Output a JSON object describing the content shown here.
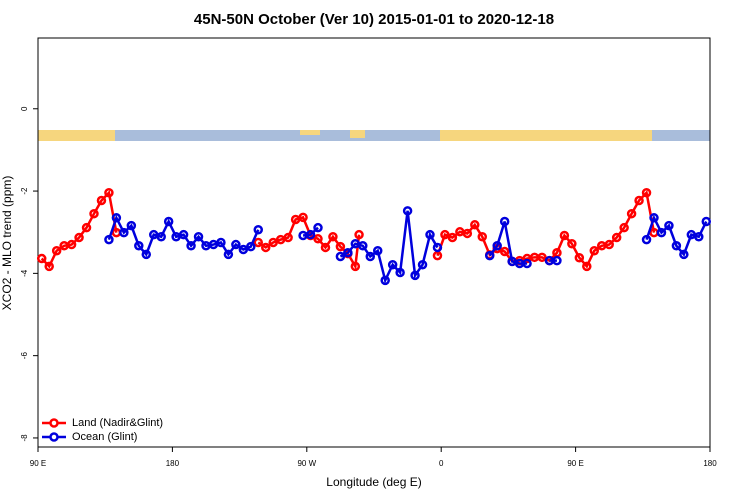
{
  "chart_data": {
    "type": "line",
    "title": "45N-50N October (Ver 10)   2015-01-01 to 2020-12-18",
    "x_label": "Longitude (deg E)",
    "y_label": "XCO2 - MLO trend (ppm)",
    "xlim": [
      90,
      540
    ],
    "ylim": [
      -8.22,
      1.72
    ],
    "xticks": [
      {
        "value": 90,
        "label": "90 E"
      },
      180,
      {
        "value": 270,
        "label": "90 W"
      },
      {
        "value": 360,
        "label": "0"
      },
      {
        "value": 450,
        "label": "90 E"
      },
      {
        "value": 540,
        "label": "180"
      }
    ],
    "yticks": [
      -8,
      -6,
      -4,
      -2,
      0
    ],
    "legend": "bottom-left",
    "series": [
      {
        "name": "Land (Nadir&Glint)",
        "color": "#ff0000",
        "x": [
          92.5,
          97.5,
          102.5,
          107.5,
          112.5,
          117.5,
          122.5,
          127.5,
          132.5,
          137.5,
          142.5,
          200,
          237.5,
          242.5,
          247.5,
          252.5,
          257.5,
          262.5,
          267.5,
          272.5,
          277.5,
          282.5,
          287.5,
          292.5,
          297.5,
          302.5,
          305,
          330,
          357.5,
          362.5,
          367.5,
          372.5,
          377.5,
          382.5,
          387.5,
          392.5,
          397.5,
          402.5,
          407.5,
          412.5,
          417.5,
          422.5,
          427.5,
          432.5,
          437.5,
          442.5,
          447.5,
          452.5,
          457.5,
          462.5,
          467.5,
          472.5,
          477.5,
          482.5,
          487.5,
          492.5,
          497.5,
          502.5
        ],
        "values": [
          -3.64,
          -3.83,
          -3.45,
          -3.33,
          -3.3,
          -3.13,
          -2.89,
          -2.55,
          -2.23,
          -2.04,
          -3.01,
          null,
          -3.25,
          -3.37,
          -3.25,
          -3.18,
          -3.13,
          -2.69,
          -2.64,
          -3.08,
          -3.16,
          -3.37,
          -3.11,
          -3.35,
          -3.52,
          -3.83,
          -3.06,
          null,
          -3.57,
          -3.06,
          -3.13,
          -2.99,
          -3.03,
          -2.82,
          -3.11,
          -3.55,
          -3.4,
          -3.47,
          -3.71,
          -3.69,
          -3.64,
          -3.61,
          -3.61,
          -3.69,
          -3.5,
          -3.08,
          -3.28,
          -3.62,
          -3.83,
          -3.45,
          -3.33,
          -3.3,
          -3.13,
          -2.89,
          -2.55,
          -2.23,
          -2.04,
          -3.01
        ]
      },
      {
        "name": "Ocean (Glint)",
        "color": "#0000dd",
        "x": [
          137.5,
          142.5,
          147.5,
          152.5,
          157.5,
          162.5,
          167.5,
          172.5,
          177.5,
          182.5,
          187.5,
          192.5,
          197.5,
          202.5,
          207.5,
          212.5,
          217.5,
          222.5,
          227.5,
          232.5,
          237.5,
          250,
          267.5,
          272.5,
          277.5,
          285,
          292.5,
          297.5,
          302.5,
          307.5,
          312.5,
          317.5,
          322.5,
          327.5,
          332.5,
          337.5,
          342.5,
          347.5,
          352.5,
          357.5,
          375,
          392.5,
          397.5,
          402.5,
          407.5,
          412.5,
          417.5,
          425,
          432.5,
          437.5,
          470,
          497.5,
          502.5,
          507.5,
          512.5,
          517.5,
          522.5,
          527.5,
          532.5,
          537.5
        ],
        "values": [
          -3.18,
          -2.65,
          -3.01,
          -2.84,
          -3.33,
          -3.54,
          -3.06,
          -3.11,
          -2.74,
          -3.11,
          -3.06,
          -3.33,
          -3.11,
          -3.33,
          -3.3,
          -3.25,
          -3.54,
          -3.3,
          -3.42,
          -3.35,
          -2.94,
          null,
          -3.08,
          -3.06,
          -2.89,
          null,
          -3.59,
          -3.5,
          -3.28,
          -3.33,
          -3.59,
          -3.45,
          -4.17,
          -3.79,
          -3.98,
          -2.48,
          -4.05,
          -3.79,
          -3.06,
          -3.37,
          null,
          -3.57,
          -3.33,
          -2.74,
          -3.71,
          -3.76,
          -3.76,
          null,
          -3.69,
          -3.69,
          null,
          -3.18,
          -2.65,
          -3.01,
          -2.84,
          -3.33,
          -3.54,
          -3.06,
          -3.11,
          -2.74
        ]
      }
    ]
  }
}
